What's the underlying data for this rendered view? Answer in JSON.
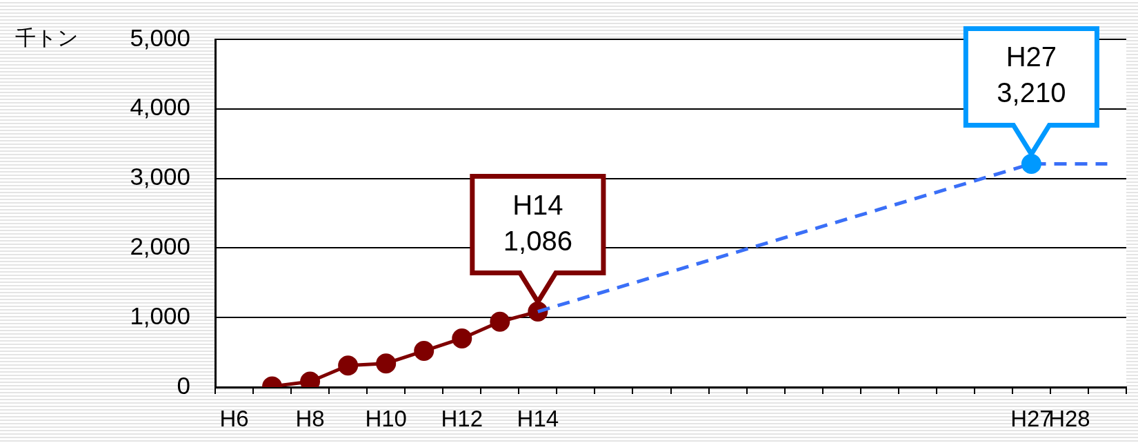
{
  "chart_data": {
    "type": "line",
    "ylabel": "千トン",
    "categories": [
      "H6",
      null,
      "H8",
      null,
      "H10",
      null,
      "H12",
      null,
      "H14",
      null,
      null,
      null,
      null,
      null,
      null,
      null,
      null,
      null,
      null,
      null,
      null,
      "H27",
      "H28",
      null
    ],
    "series": [
      {
        "type": "line",
        "color": "#7f0000",
        "marker": "circle",
        "line_style": "solid",
        "values": [
          null,
          10,
          80,
          310,
          340,
          520,
          700,
          940,
          1086,
          null,
          null,
          null,
          null,
          null,
          null,
          null,
          null,
          null,
          null,
          null,
          null,
          null,
          null,
          null
        ]
      },
      {
        "type": "line",
        "color": "#3a6ff7",
        "marker": "none",
        "line_style": "dashed",
        "values": [
          null,
          null,
          null,
          null,
          null,
          null,
          null,
          null,
          1086,
          null,
          null,
          null,
          null,
          null,
          null,
          null,
          null,
          null,
          null,
          null,
          null,
          3210,
          3210,
          3210
        ]
      },
      {
        "type": "scatter",
        "color": "#0099ff",
        "marker": "circle",
        "values": [
          null,
          null,
          null,
          null,
          null,
          null,
          null,
          null,
          null,
          null,
          null,
          null,
          null,
          null,
          null,
          null,
          null,
          null,
          null,
          null,
          null,
          3210,
          null,
          null
        ]
      }
    ],
    "annotations": [
      {
        "text": "H14\n1,086",
        "x": "H14",
        "y": 1086
      },
      {
        "text": "H27\n3,210",
        "x": "H27",
        "y": 3210
      }
    ],
    "ylim": [
      0,
      5000
    ],
    "yticks": [
      0,
      {
        "value": 1000,
        "label": "1,000"
      },
      {
        "value": 2000,
        "label": "2,000"
      },
      {
        "value": 3000,
        "label": "3,000"
      },
      {
        "value": 4000,
        "label": "4,000"
      },
      {
        "value": 5000,
        "label": "5,000"
      }
    ],
    "grid": "y",
    "legend": false
  }
}
